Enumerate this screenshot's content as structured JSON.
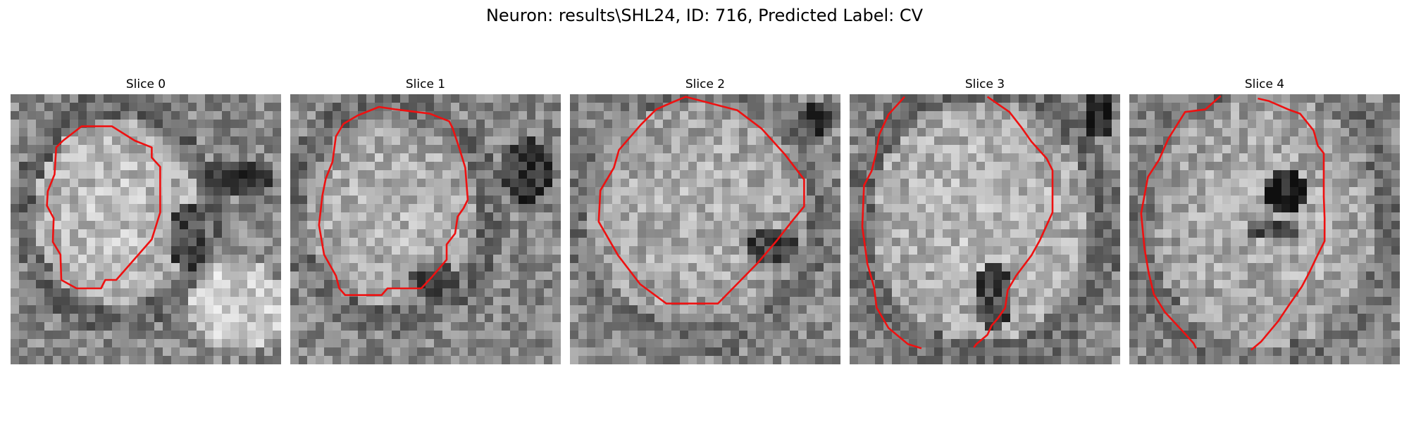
{
  "figure": {
    "title": "Neuron: results\\SHL24, ID: 716, Predicted Label: CV"
  },
  "slices": [
    {
      "title": "Slice 0",
      "index": 0
    },
    {
      "title": "Slice 1",
      "index": 1
    },
    {
      "title": "Slice 2",
      "index": 2
    },
    {
      "title": "Slice 3",
      "index": 3
    },
    {
      "title": "Slice 4",
      "index": 4
    }
  ],
  "colors": {
    "contour": "#ee1111",
    "colormap": "gray"
  }
}
